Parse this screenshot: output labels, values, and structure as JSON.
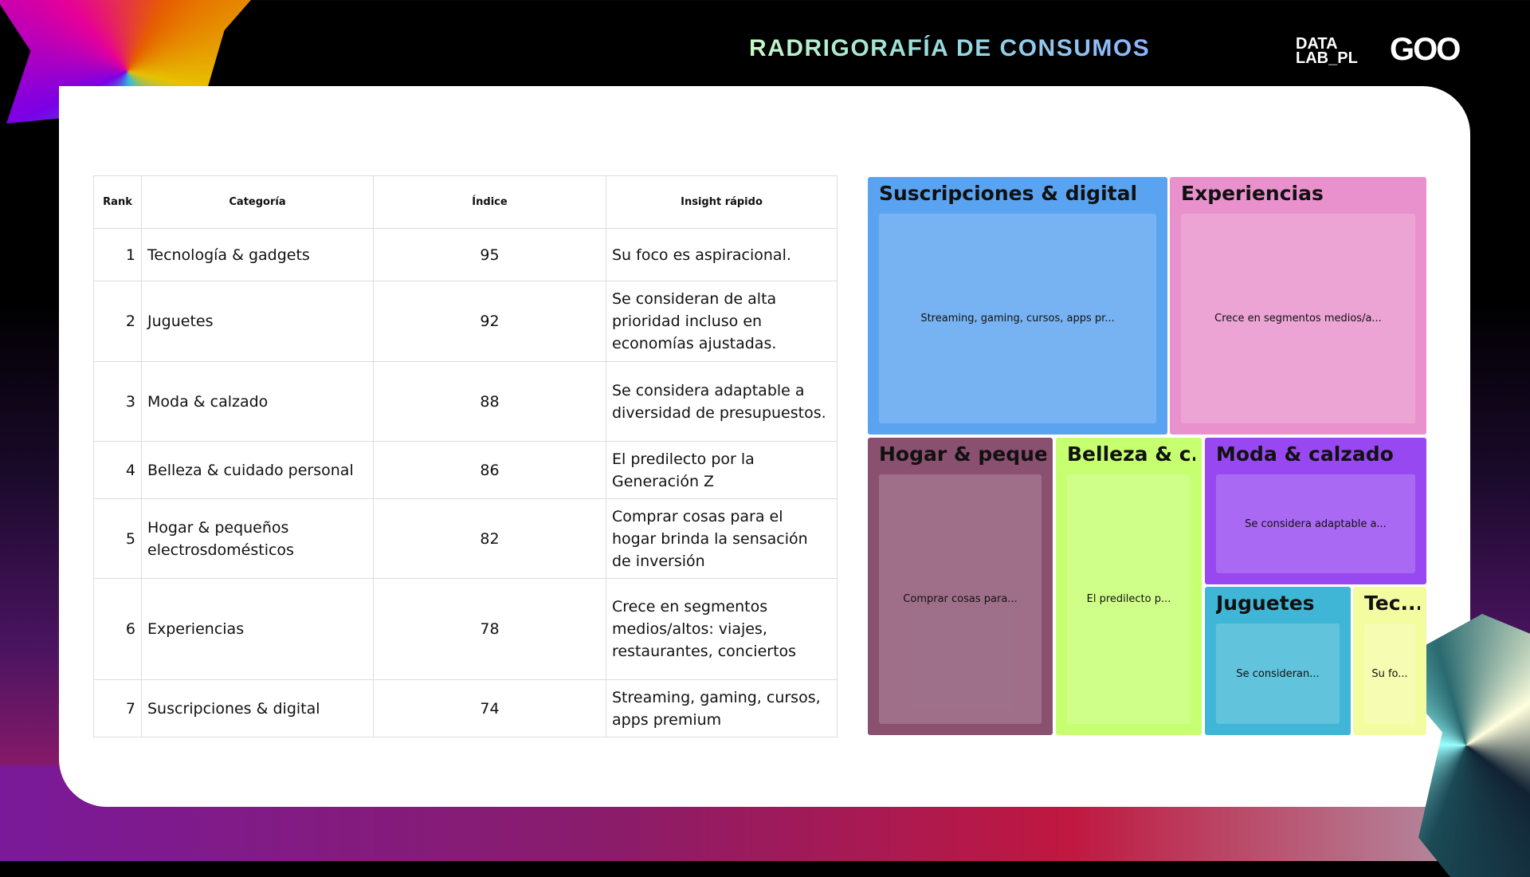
{
  "header": {
    "title": "RADRIGORAFÍA DE CONSUMOS",
    "logo_datalab": "DATA LAB_PL",
    "logo_goo": "GOO"
  },
  "table": {
    "columns": [
      "Rank",
      "Categoría",
      "Índice",
      "Insight rápido"
    ],
    "rows": [
      {
        "rank": "1",
        "category": "Tecnología & gadgets",
        "index": "95",
        "insight": "Su foco es aspiracional."
      },
      {
        "rank": "2",
        "category": "Juguetes",
        "index": "92",
        "insight": "Se consideran de alta prioridad incluso en economías ajustadas."
      },
      {
        "rank": "3",
        "category": "Moda & calzado",
        "index": "88",
        "insight": "Se considera adaptable a diversidad de presupuestos."
      },
      {
        "rank": "4",
        "category": "Belleza & cuidado personal",
        "index": "86",
        "insight": "El predilecto por la Generación Z"
      },
      {
        "rank": "5",
        "category": "Hogar & pequeños electrosdomésticos",
        "index": "82",
        "insight": "Comprar cosas para el hogar brinda la  sensación de inversión"
      },
      {
        "rank": "6",
        "category": "Experiencias",
        "index": "78",
        "insight": "Crece en segmentos medios/altos: viajes, restaurantes, conciertos"
      },
      {
        "rank": "7",
        "category": "Suscripciones & digital",
        "index": "74",
        "insight": "Streaming, gaming, cursos, apps premium"
      }
    ]
  },
  "treemap": [
    {
      "title": "Suscripciones & digital",
      "label": "Streaming, gaming, cursos, apps pr...",
      "color": "#5aa3f0"
    },
    {
      "title": "Experiencias",
      "label": "Crece en segmentos medios/a...",
      "color": "#e891cc"
    },
    {
      "title": "Hogar & peque...",
      "label": "Comprar cosas para...",
      "color": "#8a5070"
    },
    {
      "title": "Belleza & c...",
      "label": "El predilecto p...",
      "color": "#c6ff70"
    },
    {
      "title": "Moda & calzado",
      "label": "Se considera adaptable a...",
      "color": "#9848f0"
    },
    {
      "title": "Juguetes",
      "label": "Se consideran...",
      "color": "#40b6d6"
    },
    {
      "title": "Tec...",
      "label": "Su fo...",
      "color": "#f4fca0"
    }
  ]
}
